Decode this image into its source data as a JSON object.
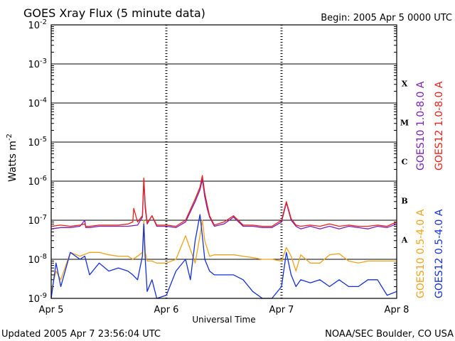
{
  "chart_data": {
    "type": "line",
    "title": "GOES Xray Flux (5 minute data)",
    "begin": "Begin:  2005 Apr 5 0000 UTC",
    "xlabel": "Universal Time",
    "ylabel_main": "Watts m",
    "ylabel_sup": "-2",
    "y_scale": "log",
    "ylim": [
      1e-09,
      0.01
    ],
    "x_ticks": [
      "Apr 5",
      "Apr 6",
      "Apr 7",
      "Apr 8"
    ],
    "xlim_hours": [
      0,
      72
    ],
    "y_ticks": [
      {
        "base": "10",
        "exp": "-2"
      },
      {
        "base": "10",
        "exp": "-3"
      },
      {
        "base": "10",
        "exp": "-4"
      },
      {
        "base": "10",
        "exp": "-5"
      },
      {
        "base": "10",
        "exp": "-6"
      },
      {
        "base": "10",
        "exp": "-7"
      },
      {
        "base": "10",
        "exp": "-8"
      },
      {
        "base": "10",
        "exp": "-9"
      }
    ],
    "flare_classes": [
      "X",
      "M",
      "C",
      "B",
      "A"
    ],
    "grid": true,
    "legend_right": [
      {
        "label": "GOES10 1.0-8.0 A",
        "color": "#7a1fb5"
      },
      {
        "label": "GOES12 1.0-8.0 A",
        "color": "#e8201a"
      },
      {
        "label": "GOES10 0.5-4.0 A",
        "color": "#f0a21a"
      },
      {
        "label": "GOES12 0.5-4.0 A",
        "color": "#1530d8"
      }
    ],
    "series": [
      {
        "name": "GOES10 1.0-8.0 A",
        "color": "#7a1fb5",
        "x": [
          0,
          2,
          4,
          6,
          7,
          7.2,
          8,
          10,
          12,
          14,
          16,
          18,
          19,
          19.3,
          19.6,
          20,
          21,
          22,
          24,
          26,
          28,
          30,
          31,
          31.5,
          32,
          32.5,
          33,
          34,
          36,
          38,
          40,
          42,
          44,
          46,
          48,
          49,
          50,
          51,
          52,
          54,
          56,
          58,
          60,
          62,
          64,
          66,
          68,
          70,
          72
        ],
        "y": [
          6e-08,
          6.5e-08,
          6.5e-08,
          7e-08,
          1e-07,
          6.5e-08,
          6.5e-08,
          7e-08,
          7e-08,
          7e-08,
          7e-08,
          7.5e-08,
          1.2e-07,
          1.1e-06,
          2e-07,
          8e-08,
          1.3e-07,
          7e-08,
          7e-08,
          6.5e-08,
          9e-08,
          3e-07,
          6e-07,
          1.1e-06,
          4e-07,
          2e-07,
          1.2e-07,
          7e-08,
          8e-08,
          1.2e-07,
          7e-08,
          7e-08,
          6.5e-08,
          6.5e-08,
          9e-08,
          2.8e-07,
          1e-07,
          7e-08,
          6e-08,
          7e-08,
          6e-08,
          7e-08,
          6e-08,
          7e-08,
          6.5e-08,
          6e-08,
          7e-08,
          6.5e-08,
          8e-08
        ]
      },
      {
        "name": "GOES12 1.0-8.0 A",
        "color": "#e8201a",
        "x": [
          0,
          2,
          4,
          6,
          7,
          7.2,
          8,
          10,
          12,
          14,
          16,
          17,
          17.2,
          17.5,
          18,
          19,
          19.3,
          19.6,
          20,
          21,
          22,
          24,
          26,
          28,
          30,
          31,
          31.5,
          32,
          32.5,
          33,
          34,
          36,
          38,
          40,
          42,
          44,
          46,
          48,
          49,
          50,
          51,
          52,
          54,
          56,
          58,
          60,
          62,
          64,
          66,
          68,
          70,
          72
        ],
        "y": [
          7e-08,
          7.5e-08,
          7e-08,
          7.5e-08,
          8e-08,
          7e-08,
          7e-08,
          7.5e-08,
          7.5e-08,
          7.5e-08,
          8e-08,
          9e-08,
          2e-07,
          1.5e-07,
          9e-08,
          1.3e-07,
          1.2e-06,
          2.5e-07,
          8.5e-08,
          1.3e-07,
          7.5e-08,
          7.5e-08,
          7e-08,
          1e-07,
          3.5e-07,
          7e-07,
          1.4e-06,
          5e-07,
          2.5e-07,
          1.3e-07,
          7.5e-08,
          9e-08,
          1.3e-07,
          7.5e-08,
          7.5e-08,
          7e-08,
          7e-08,
          1e-07,
          3e-07,
          1.1e-07,
          7.5e-08,
          7e-08,
          7.5e-08,
          7e-08,
          8e-08,
          7e-08,
          7.5e-08,
          7e-08,
          7e-08,
          7.5e-08,
          7e-08,
          9e-08
        ]
      },
      {
        "name": "GOES10 0.5-4.0 A",
        "color": "#f0a21a",
        "x": [
          0,
          1,
          2,
          4,
          6,
          8,
          10,
          12,
          14,
          16,
          17,
          18,
          19,
          19.3,
          19.6,
          20,
          21,
          22,
          24,
          26,
          28,
          30,
          31,
          31.5,
          32,
          33,
          34,
          36,
          38,
          40,
          42,
          44,
          46,
          48,
          49,
          50,
          51,
          52,
          54,
          56,
          58,
          60,
          62,
          64,
          66,
          68,
          70,
          72
        ],
        "y": [
          1.5e-09,
          5e-09,
          3e-09,
          1.5e-08,
          1.2e-08,
          1.5e-08,
          1.5e-08,
          1.3e-08,
          1.2e-08,
          1.2e-08,
          1e-08,
          1.2e-08,
          1.5e-08,
          1e-07,
          1.5e-08,
          9e-09,
          9e-09,
          8e-09,
          8e-09,
          1e-08,
          4e-08,
          8e-09,
          4e-08,
          1e-07,
          3e-08,
          1.2e-08,
          1.3e-08,
          1.3e-08,
          1.3e-08,
          1.2e-08,
          1.1e-08,
          1e-08,
          1e-08,
          9e-09,
          2e-08,
          1.2e-08,
          5e-09,
          1.3e-08,
          8e-09,
          8e-09,
          1.3e-08,
          1.4e-08,
          9e-09,
          8e-09,
          9e-09,
          9e-09,
          9e-09,
          9e-09
        ]
      },
      {
        "name": "GOES12 0.5-4.0 A",
        "color": "#1530d8",
        "x": [
          0,
          1,
          2,
          4,
          6,
          7,
          8,
          10,
          12,
          14,
          16,
          17,
          18,
          19,
          19.3,
          19.6,
          20,
          21,
          22,
          24,
          26,
          28,
          29,
          30,
          31,
          31.5,
          32,
          33,
          34,
          36,
          38,
          40,
          42,
          44,
          46,
          48,
          49,
          50,
          51,
          52,
          54,
          56,
          58,
          60,
          62,
          64,
          66,
          68,
          70,
          72
        ],
        "y": [
          1e-09,
          8e-09,
          2e-09,
          1.5e-08,
          1e-08,
          1.2e-08,
          4e-09,
          8e-09,
          5e-09,
          6e-09,
          5e-09,
          4e-09,
          3e-09,
          1.2e-08,
          8e-08,
          1e-08,
          1.5e-09,
          3e-09,
          1e-09,
          1.2e-09,
          5e-09,
          1e-08,
          3e-09,
          3e-08,
          1.4e-07,
          4e-08,
          1e-08,
          5e-09,
          4e-09,
          4e-09,
          4e-09,
          3e-09,
          1.5e-09,
          1e-09,
          1e-09,
          2e-09,
          1.5e-08,
          4e-09,
          2e-09,
          3e-09,
          2.5e-09,
          3e-09,
          2e-09,
          3e-09,
          2e-09,
          2e-09,
          3e-09,
          3e-09,
          1.2e-09,
          1.5e-09
        ]
      }
    ]
  },
  "footer": {
    "updated": "Updated 2005 Apr  7 23:56:04 UTC",
    "credit": "NOAA/SEC Boulder, CO USA"
  }
}
